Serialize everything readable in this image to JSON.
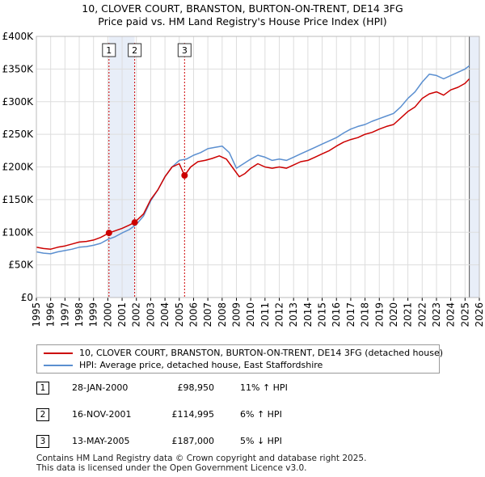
{
  "chart_data": {
    "type": "line",
    "title": "10, CLOVER COURT, BRANSTON, BURTON-ON-TRENT, DE14 3FG",
    "subtitle": "Price paid vs. HM Land Registry's House Price Index (HPI)",
    "xlabel": "",
    "ylabel": "",
    "xlim": [
      1995,
      2026
    ],
    "ylim": [
      0,
      400000
    ],
    "x_ticks": [
      "1995",
      "1996",
      "1997",
      "1998",
      "1999",
      "2000",
      "2001",
      "2002",
      "2003",
      "2004",
      "2005",
      "2006",
      "2007",
      "2008",
      "2009",
      "2010",
      "2011",
      "2012",
      "2013",
      "2014",
      "2015",
      "2016",
      "2017",
      "2018",
      "2019",
      "2020",
      "2021",
      "2022",
      "2023",
      "2024",
      "2025",
      "2026"
    ],
    "y_ticks": [
      {
        "value": 0,
        "label": "£0"
      },
      {
        "value": 50000,
        "label": "£50K"
      },
      {
        "value": 100000,
        "label": "£100K"
      },
      {
        "value": 150000,
        "label": "£150K"
      },
      {
        "value": 200000,
        "label": "£200K"
      },
      {
        "value": 250000,
        "label": "£250K"
      },
      {
        "value": 300000,
        "label": "£300K"
      },
      {
        "value": 350000,
        "label": "£350K"
      },
      {
        "value": 400000,
        "label": "£400K"
      }
    ],
    "grid": true,
    "series": [
      {
        "name": "10, CLOVER COURT, BRANSTON, BURTON-ON-TRENT, DE14 3FG (detached house)",
        "color": "#cc0000",
        "x": [
          1995.0,
          1995.5,
          1996.0,
          1996.5,
          1997.0,
          1997.5,
          1998.0,
          1998.5,
          1999.0,
          1999.5,
          2000.08,
          2000.5,
          2001.0,
          2001.5,
          2001.88,
          2002.5,
          2003.0,
          2003.5,
          2004.0,
          2004.5,
          2005.0,
          2005.37,
          2005.8,
          2006.3,
          2006.8,
          2007.3,
          2007.8,
          2008.3,
          2008.7,
          2009.2,
          2009.6,
          2010.0,
          2010.5,
          2011.0,
          2011.5,
          2012.0,
          2012.5,
          2013.0,
          2013.5,
          2014.0,
          2014.5,
          2015.0,
          2015.5,
          2016.0,
          2016.5,
          2017.0,
          2017.5,
          2018.0,
          2018.5,
          2019.0,
          2019.5,
          2020.0,
          2020.5,
          2021.0,
          2021.5,
          2022.0,
          2022.5,
          2023.0,
          2023.5,
          2024.0,
          2024.5,
          2025.0,
          2025.3
        ],
        "values": [
          77000,
          75000,
          74000,
          77000,
          79000,
          82000,
          85000,
          86000,
          88000,
          92000,
          98950,
          102000,
          106000,
          111000,
          114995,
          128000,
          150000,
          165000,
          185000,
          200000,
          205000,
          187000,
          200000,
          208000,
          210000,
          213000,
          217000,
          212000,
          200000,
          185000,
          190000,
          198000,
          205000,
          200000,
          198000,
          200000,
          198000,
          203000,
          208000,
          210000,
          215000,
          220000,
          225000,
          232000,
          238000,
          242000,
          245000,
          250000,
          253000,
          258000,
          262000,
          265000,
          275000,
          285000,
          292000,
          305000,
          312000,
          315000,
          310000,
          318000,
          322000,
          328000,
          335000
        ]
      },
      {
        "name": "HPI: Average price, detached house, East Staffordshire",
        "color": "#5b8fd0",
        "x": [
          1995.0,
          1995.5,
          1996.0,
          1996.5,
          1997.0,
          1997.5,
          1998.0,
          1998.5,
          1999.0,
          1999.5,
          2000.0,
          2000.5,
          2001.0,
          2001.5,
          2002.0,
          2002.5,
          2003.0,
          2003.5,
          2004.0,
          2004.5,
          2005.0,
          2005.5,
          2006.0,
          2006.5,
          2007.0,
          2007.5,
          2008.0,
          2008.5,
          2009.0,
          2009.5,
          2010.0,
          2010.5,
          2011.0,
          2011.5,
          2012.0,
          2012.5,
          2013.0,
          2013.5,
          2014.0,
          2014.5,
          2015.0,
          2015.5,
          2016.0,
          2016.5,
          2017.0,
          2017.5,
          2018.0,
          2018.5,
          2019.0,
          2019.5,
          2020.0,
          2020.5,
          2021.0,
          2021.5,
          2022.0,
          2022.5,
          2023.0,
          2023.5,
          2024.0,
          2024.5,
          2025.0,
          2025.3
        ],
        "values": [
          70000,
          68000,
          67000,
          70000,
          72000,
          74000,
          77000,
          78000,
          80000,
          83000,
          89000,
          93000,
          99000,
          104000,
          112000,
          125000,
          148000,
          165000,
          185000,
          200000,
          210000,
          212000,
          218000,
          222000,
          228000,
          230000,
          232000,
          222000,
          198000,
          205000,
          212000,
          218000,
          215000,
          210000,
          212000,
          210000,
          215000,
          220000,
          225000,
          230000,
          235000,
          240000,
          245000,
          252000,
          258000,
          262000,
          265000,
          270000,
          274000,
          278000,
          282000,
          292000,
          305000,
          315000,
          330000,
          342000,
          340000,
          335000,
          340000,
          345000,
          350000,
          355000
        ]
      }
    ],
    "transactions": [
      {
        "num": "1",
        "x": 2000.08,
        "price_value": 98950,
        "date": "28-JAN-2000",
        "price": "£98,950",
        "hpi": "11% ↑ HPI"
      },
      {
        "num": "2",
        "x": 2001.88,
        "price_value": 114995,
        "date": "16-NOV-2001",
        "price": "£114,995",
        "hpi": "6% ↑ HPI"
      },
      {
        "num": "3",
        "x": 2005.37,
        "price_value": 187000,
        "date": "13-MAY-2005",
        "price": "£187,000",
        "hpi": "5% ↓ HPI"
      }
    ],
    "forecast_from": 2025.3
  },
  "colors": {
    "property": "#cc0000",
    "hpi": "#5b8fd0",
    "shade": "#e8eef8",
    "grid": "#dddddd",
    "marker_line": "#cc0000"
  },
  "footer": {
    "line1": "Contains HM Land Registry data © Crown copyright and database right 2025.",
    "line2": "This data is licensed under the Open Government Licence v3.0."
  }
}
